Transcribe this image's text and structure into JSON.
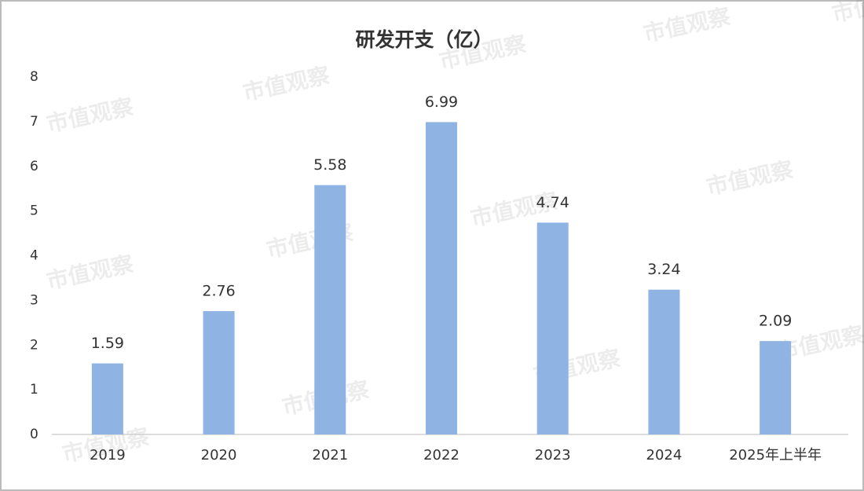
{
  "chart_data": {
    "type": "bar",
    "title": "研发开支（亿）",
    "watermark": "市值观察",
    "categories": [
      "2019",
      "2020",
      "2021",
      "2022",
      "2023",
      "2024",
      "2025年上半年"
    ],
    "values": [
      1.59,
      2.76,
      5.58,
      6.99,
      4.74,
      3.24,
      2.09
    ],
    "color": "#8fb3e2",
    "ylim": [
      0,
      8
    ],
    "yticks": [
      0,
      1,
      2,
      3,
      4,
      5,
      6,
      7,
      8
    ],
    "grid": false
  }
}
